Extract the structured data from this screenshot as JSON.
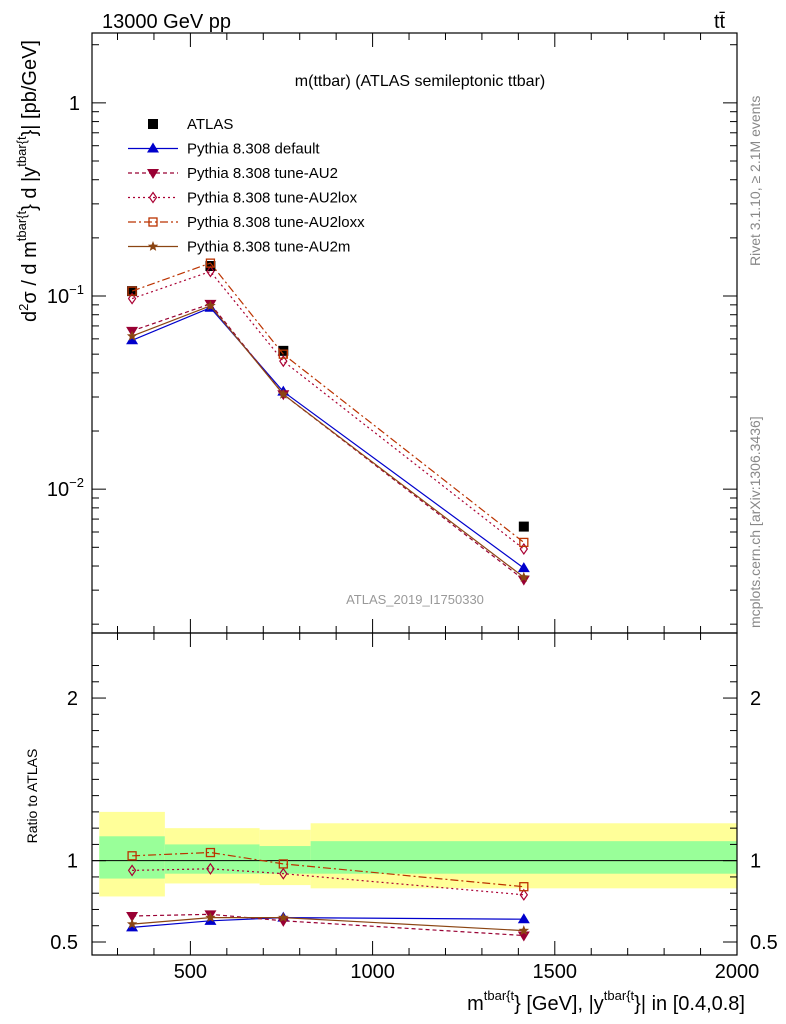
{
  "header": {
    "energy_label": "13000 GeV pp",
    "process_label": "tt̄"
  },
  "side_labels": {
    "rivet": "Rivet 3.1.10, ≥ 2.1M events",
    "mcplots": "mcplots.cern.ch [arXiv:1306.3436]"
  },
  "colors": {
    "data": "#000000",
    "default": "#0000cc",
    "au2": "#990033",
    "au2lox": "#aa0033",
    "au2loxx": "#bb3300",
    "au2m": "#8b4513",
    "band_inner": "#99ff99",
    "band_outer": "#ffff99"
  },
  "chart_data": [
    {
      "type": "line",
      "panel": "main",
      "title": "m(ttbar) (ATLAS semileptonic ttbar)",
      "analysis_label": "ATLAS_2019_I1750330",
      "ylabel_parts": [
        "d",
        "2",
        "σ / d m",
        "tbar{t",
        "} d |y",
        "tbar{t",
        "}| [pb/GeV]"
      ],
      "yscale": "log",
      "ylim": [
        0.0018,
        2.3
      ],
      "xlim": [
        230,
        2000
      ],
      "y_ticks": [
        {
          "label": "1",
          "exp": "",
          "value": 1
        },
        {
          "label": "10",
          "exp": "−1",
          "value": 0.1
        },
        {
          "label": "10",
          "exp": "−2",
          "value": 0.01
        }
      ],
      "legend_position": "top-left",
      "x": [
        340,
        555,
        755,
        1415
      ],
      "series": [
        {
          "name": "ATLAS",
          "key": "data",
          "marker": "square",
          "values": [
            0.106,
            0.143,
            0.052,
            0.0064
          ]
        },
        {
          "name": "Pythia 8.308 default",
          "key": "default",
          "marker": "triangle-up",
          "dash": "",
          "values": [
            0.059,
            0.087,
            0.032,
            0.0039
          ]
        },
        {
          "name": "Pythia 8.308 tune-AU2",
          "key": "au2",
          "marker": "triangle-down",
          "dash": "4,3",
          "values": [
            0.066,
            0.091,
            0.031,
            0.0034
          ]
        },
        {
          "name": "Pythia 8.308 tune-AU2lox",
          "key": "au2lox",
          "marker": "diamond",
          "dash": "2,3",
          "values": [
            0.097,
            0.134,
            0.046,
            0.0049
          ]
        },
        {
          "name": "Pythia 8.308 tune-AU2loxx",
          "key": "au2loxx",
          "marker": "open-square",
          "dash": "8,3,2,3",
          "values": [
            0.106,
            0.148,
            0.05,
            0.0053
          ]
        },
        {
          "name": "Pythia 8.308 tune-AU2m",
          "key": "au2m",
          "marker": "star",
          "dash": "",
          "values": [
            0.062,
            0.089,
            0.031,
            0.0035
          ]
        }
      ]
    },
    {
      "type": "line",
      "panel": "ratio",
      "ylabel": "Ratio to ATLAS",
      "xlabel_parts": [
        "m",
        "tbar{t",
        "} [GeV], |y",
        "tbar{t",
        "}| in [0.4,0.8]"
      ],
      "ylim": [
        0.42,
        2.4
      ],
      "xlim": [
        230,
        2000
      ],
      "y_ticks": [
        0.5,
        1,
        2
      ],
      "x_ticks": [
        500,
        1000,
        1500,
        2000
      ],
      "bins": [
        [
          250,
          430
        ],
        [
          430,
          690
        ],
        [
          690,
          830
        ],
        [
          830,
          2000
        ]
      ],
      "band_inner": [
        [
          0.89,
          1.15
        ],
        [
          0.92,
          1.1
        ],
        [
          0.92,
          1.09
        ],
        [
          0.92,
          1.12
        ]
      ],
      "band_outer": [
        [
          0.78,
          1.3
        ],
        [
          0.86,
          1.2
        ],
        [
          0.85,
          1.19
        ],
        [
          0.83,
          1.23
        ]
      ],
      "x": [
        340,
        555,
        755,
        1415
      ],
      "series": [
        {
          "name": "Pythia 8.308 default",
          "key": "default",
          "values": [
            0.59,
            0.63,
            0.65,
            0.64
          ]
        },
        {
          "name": "Pythia 8.308 tune-AU2",
          "key": "au2",
          "values": [
            0.66,
            0.67,
            0.63,
            0.54
          ]
        },
        {
          "name": "Pythia 8.308 tune-AU2lox",
          "key": "au2lox",
          "values": [
            0.94,
            0.95,
            0.92,
            0.79
          ]
        },
        {
          "name": "Pythia 8.308 tune-AU2loxx",
          "key": "au2loxx",
          "values": [
            1.03,
            1.05,
            0.98,
            0.84
          ]
        },
        {
          "name": "Pythia 8.308 tune-AU2m",
          "key": "au2m",
          "values": [
            0.61,
            0.65,
            0.65,
            0.57
          ]
        }
      ]
    }
  ]
}
